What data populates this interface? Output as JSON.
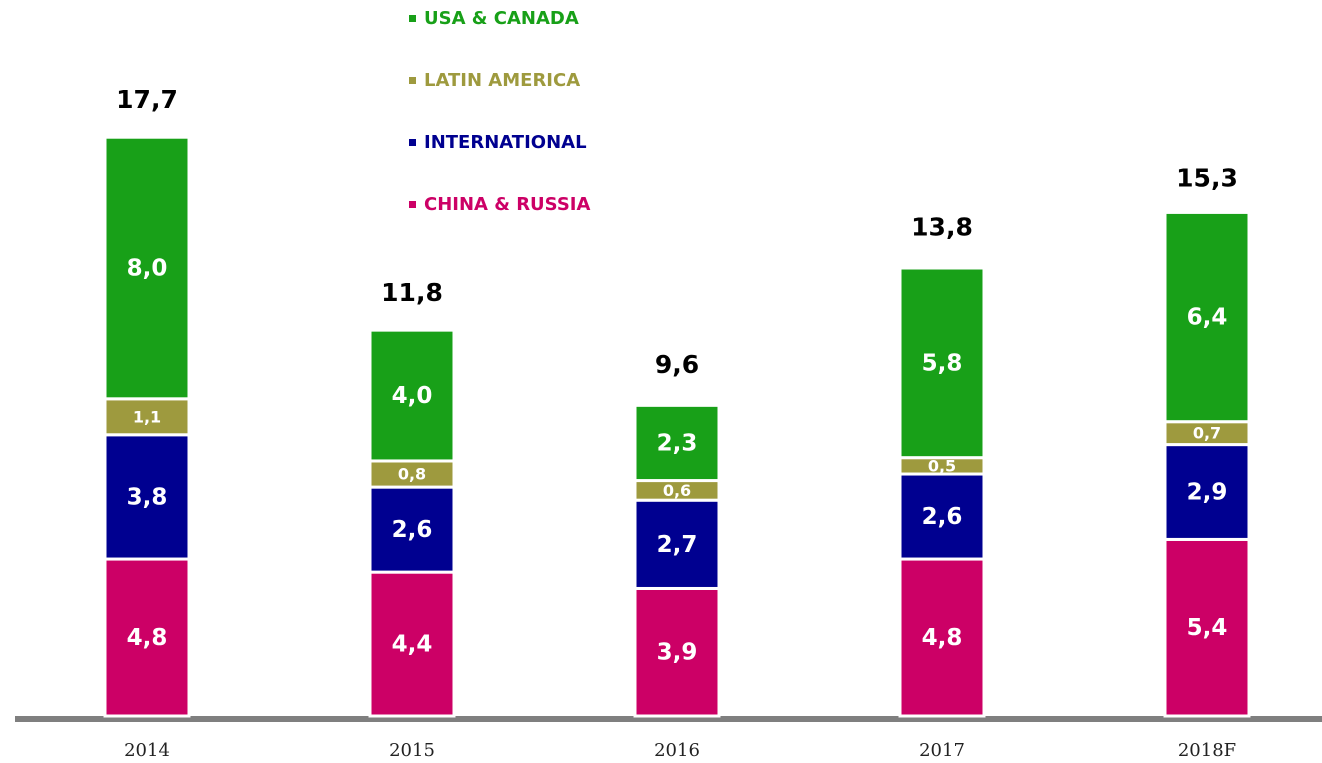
{
  "chart_data": {
    "type": "stacked-bar",
    "categories": [
      "2014",
      "2015",
      "2016",
      "2017",
      "2018F"
    ],
    "series": [
      {
        "name": "CHINA & RUSSIA",
        "color": "#cc0066",
        "values": [
          4.8,
          4.4,
          3.9,
          4.8,
          5.4
        ],
        "value_labels": [
          "4,8",
          "4,4",
          "3,9",
          "4,8",
          "5,4"
        ]
      },
      {
        "name": "INTERNATIONAL",
        "color": "#000090",
        "values": [
          3.8,
          2.6,
          2.7,
          2.6,
          2.9
        ],
        "value_labels": [
          "3,8",
          "2,6",
          "2,7",
          "2,6",
          "2,9"
        ]
      },
      {
        "name": "LATIN AMERICA",
        "color": "#9e9a3e",
        "values": [
          1.1,
          0.8,
          0.6,
          0.5,
          0.7
        ],
        "value_labels": [
          "1,1",
          "0,8",
          "0,6",
          "0,5",
          "0,7"
        ]
      },
      {
        "name": "USA & CANADA",
        "color": "#18a018",
        "values": [
          8.0,
          4.0,
          2.3,
          5.8,
          6.4
        ],
        "value_labels": [
          "8,0",
          "4,0",
          "2,3",
          "5,8",
          "6,4"
        ]
      }
    ],
    "totals": [
      17.7,
      11.8,
      9.6,
      13.8,
      15.3
    ],
    "total_labels": [
      "17,7",
      "11,8",
      "9,6",
      "13,8",
      "15,3"
    ],
    "legend": "top-center"
  }
}
